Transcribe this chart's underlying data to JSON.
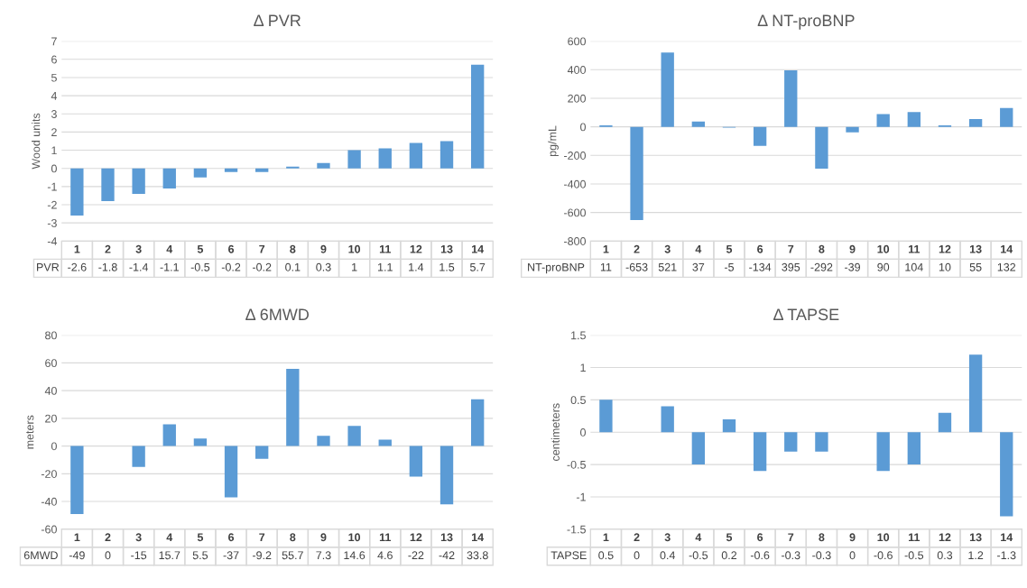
{
  "chart_data": [
    {
      "type": "bar",
      "title": "Δ PVR",
      "ylabel": "Wood units",
      "categories": [
        "1",
        "2",
        "3",
        "4",
        "5",
        "6",
        "7",
        "8",
        "9",
        "10",
        "11",
        "12",
        "13",
        "14"
      ],
      "series": [
        {
          "name": "PVR",
          "color": "#5b9bd5",
          "values": [
            -2.6,
            -1.8,
            -1.4,
            -1.1,
            -0.5,
            -0.2,
            -0.2,
            0.1,
            0.3,
            1,
            1.1,
            1.4,
            1.5,
            5.7
          ]
        }
      ],
      "ylim": [
        -4,
        7
      ],
      "yticks": [
        -4,
        -3,
        -2,
        -1,
        0,
        1,
        2,
        3,
        4,
        5,
        6,
        7
      ],
      "grid": "y",
      "data_labels": true,
      "legend": false
    },
    {
      "type": "bar",
      "title": "Δ NT-proBNP",
      "ylabel": "pg/mL",
      "categories": [
        "1",
        "2",
        "3",
        "4",
        "5",
        "6",
        "7",
        "8",
        "9",
        "10",
        "11",
        "12",
        "13",
        "14"
      ],
      "series": [
        {
          "name": "NT-proBNP",
          "color": "#5b9bd5",
          "values": [
            11,
            -653,
            521,
            37,
            -5,
            -134,
            395,
            -292,
            -39,
            90,
            104,
            10,
            55,
            132
          ]
        }
      ],
      "ylim": [
        -800,
        600
      ],
      "yticks": [
        -800,
        -600,
        -400,
        -200,
        0,
        200,
        400,
        600
      ],
      "grid": "y",
      "data_labels": true,
      "legend": false
    },
    {
      "type": "bar",
      "title": "Δ 6MWD",
      "ylabel": "meters",
      "categories": [
        "1",
        "2",
        "3",
        "4",
        "5",
        "6",
        "7",
        "8",
        "9",
        "10",
        "11",
        "12",
        "13",
        "14"
      ],
      "series": [
        {
          "name": "6MWD",
          "color": "#5b9bd5",
          "values": [
            -49,
            0,
            -15,
            15.7,
            5.5,
            -37,
            -9.2,
            55.7,
            7.3,
            14.6,
            4.6,
            -22,
            -42,
            33.8
          ]
        }
      ],
      "ylim": [
        -60,
        80
      ],
      "yticks": [
        -60,
        -40,
        -20,
        0,
        20,
        40,
        60,
        80
      ],
      "grid": "y",
      "data_labels": true,
      "legend": false
    },
    {
      "type": "bar",
      "title": "Δ TAPSE",
      "ylabel": "centimeters",
      "categories": [
        "1",
        "2",
        "3",
        "4",
        "5",
        "6",
        "7",
        "8",
        "9",
        "10",
        "11",
        "12",
        "13",
        "14"
      ],
      "series": [
        {
          "name": "TAPSE",
          "color": "#5b9bd5",
          "values": [
            0.5,
            0,
            0.4,
            -0.5,
            0.2,
            -0.6,
            -0.3,
            -0.3,
            0,
            -0.6,
            -0.5,
            0.3,
            1.2,
            -1.3
          ]
        }
      ],
      "ylim": [
        -1.5,
        1.5
      ],
      "yticks": [
        {
          "value": -1.5,
          "label": "-1.5"
        },
        {
          "value": -1,
          "label": "-1"
        },
        {
          "value": -0.5,
          "label": "-0.5"
        },
        {
          "value": 0,
          "label": "0"
        },
        {
          "value": 0.5,
          "label": "0.5"
        },
        {
          "value": 1,
          "label": "1"
        },
        {
          "value": 1.5,
          "label": "1.5"
        }
      ],
      "grid": "y",
      "data_labels": true,
      "legend": false
    }
  ]
}
